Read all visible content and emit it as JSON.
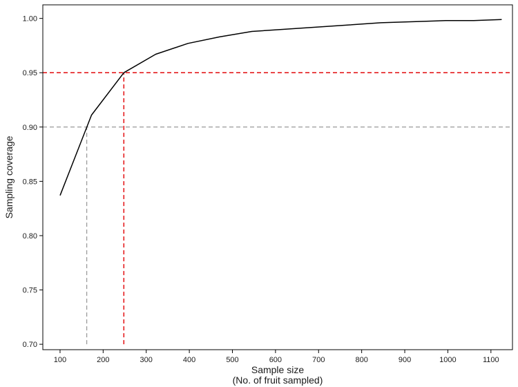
{
  "chart_data": {
    "type": "line",
    "xlabel": "Sample size",
    "xlabel_sub": "(No. of fruit sampled)",
    "ylabel": "Sampling coverage",
    "xlim": [
      60,
      1150
    ],
    "ylim": [
      0.695,
      1.0125
    ],
    "x_ticks": [
      100,
      200,
      300,
      400,
      500,
      600,
      700,
      800,
      900,
      1000,
      1100
    ],
    "y_ticks": [
      0.7,
      0.75,
      0.8,
      0.85,
      0.9,
      0.95,
      1.0
    ],
    "y_tick_labels": [
      "0.70",
      "0.75",
      "0.80",
      "0.85",
      "0.90",
      "0.95",
      "1.00"
    ],
    "grid": false,
    "series": [
      {
        "x": [
          100,
          173,
          248,
          322,
          397,
          470,
          545,
          620,
          695,
          770,
          845,
          920,
          995,
          1060,
          1125
        ],
        "y": [
          0.837,
          0.911,
          0.95,
          0.967,
          0.977,
          0.983,
          0.988,
          0.99,
          0.992,
          0.994,
          0.996,
          0.997,
          0.998,
          0.998,
          0.999
        ],
        "color": "#000000"
      }
    ],
    "reference_lines": [
      {
        "orientation": "horizontal",
        "y": 0.9,
        "color": "#8c8c8c",
        "style": "dashed"
      },
      {
        "orientation": "vertical",
        "x": 162,
        "y_from": 0.7,
        "y_to": 0.9,
        "color": "#8c8c8c",
        "style": "dashed"
      },
      {
        "orientation": "horizontal",
        "y": 0.95,
        "color": "#e41a1c",
        "style": "dashed"
      },
      {
        "orientation": "vertical",
        "x": 248,
        "y_from": 0.7,
        "y_to": 0.95,
        "color": "#e41a1c",
        "style": "dashed"
      }
    ]
  }
}
